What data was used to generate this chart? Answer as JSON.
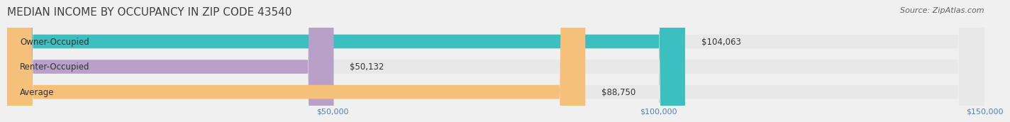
{
  "title": "MEDIAN INCOME BY OCCUPANCY IN ZIP CODE 43540",
  "source": "Source: ZipAtlas.com",
  "categories": [
    "Owner-Occupied",
    "Renter-Occupied",
    "Average"
  ],
  "values": [
    104063,
    50132,
    88750
  ],
  "bar_colors": [
    "#3bbfbf",
    "#b8a0c8",
    "#f5c07a"
  ],
  "bar_labels": [
    "$104,063",
    "$50,132",
    "$88,750"
  ],
  "xlim": [
    0,
    150000
  ],
  "xticks": [
    50000,
    100000,
    150000
  ],
  "xtick_labels": [
    "$50,000",
    "$100,000",
    "$150,000"
  ],
  "bg_color": "#f0f0f0",
  "bar_bg_color": "#e8e8e8",
  "title_fontsize": 11,
  "source_fontsize": 8,
  "label_fontsize": 8.5,
  "tick_fontsize": 8,
  "bar_height": 0.55,
  "title_color": "#404040",
  "source_color": "#606060",
  "tick_color": "#5080b0"
}
